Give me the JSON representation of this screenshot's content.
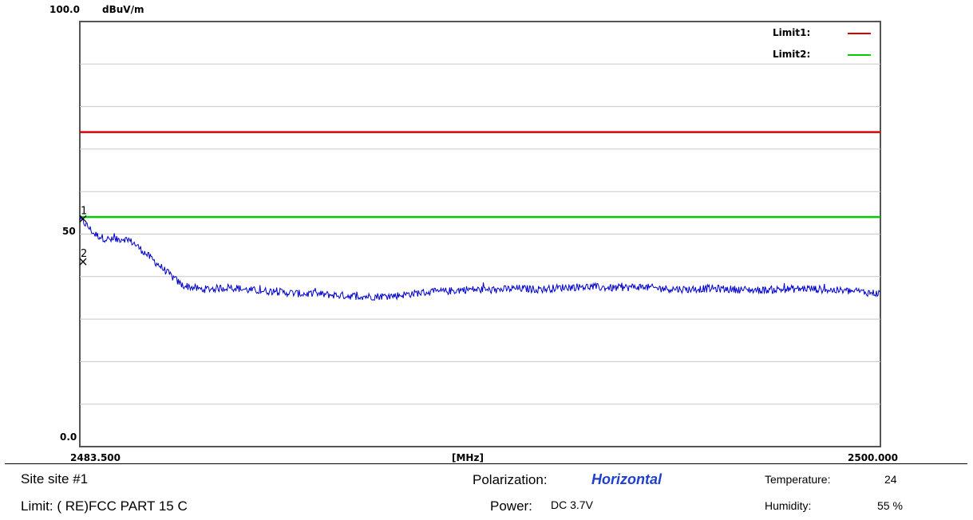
{
  "chart_data": {
    "type": "line",
    "ylabel_unit": "dBuV/m",
    "xlabel": "[MHz]",
    "xlim": [
      2483.5,
      2500.0
    ],
    "ylim": [
      0.0,
      100.0
    ],
    "y_tick_labels": [
      "100.0",
      "50",
      "0.0"
    ],
    "x_tick_labels": [
      "2483.500",
      "2500.000"
    ],
    "grid": true,
    "legend": {
      "placement": "top-right",
      "entries": [
        {
          "label": "Limit1:",
          "color": "#dd0000"
        },
        {
          "label": "Limit2:",
          "color": "#00cc00"
        }
      ]
    },
    "limits": [
      {
        "name": "Limit1",
        "y": 74.0,
        "color": "#dd0000"
      },
      {
        "name": "Limit2",
        "y": 54.0,
        "color": "#00cc00"
      }
    ],
    "series": [
      {
        "color": "#0000cc",
        "x": [
          2483.5,
          2483.65,
          2483.8,
          2484.0,
          2484.2,
          2484.4,
          2484.6,
          2484.8,
          2485.0,
          2485.2,
          2485.4,
          2485.6,
          2485.8,
          2486.0,
          2486.3,
          2486.6,
          2487.0,
          2487.5,
          2488.0,
          2488.5,
          2489.0,
          2489.5,
          2490.0,
          2490.5,
          2491.0,
          2491.5,
          2492.0,
          2492.5,
          2493.0,
          2493.5,
          2494.0,
          2494.5,
          2495.0,
          2495.5,
          2496.0,
          2496.5,
          2497.0,
          2497.5,
          2498.0,
          2498.5,
          2499.0,
          2499.5,
          2500.0
        ],
        "y": [
          53.6,
          52.0,
          50.0,
          49.0,
          48.5,
          49.0,
          48.0,
          46.0,
          44.0,
          42.0,
          40.0,
          38.0,
          37.5,
          37.0,
          37.2,
          37.5,
          36.8,
          36.5,
          36.0,
          35.8,
          35.5,
          35.3,
          35.5,
          36.2,
          36.5,
          37.0,
          36.8,
          37.2,
          37.0,
          37.5,
          37.6,
          37.3,
          37.6,
          37.2,
          37.0,
          37.2,
          37.0,
          36.8,
          37.0,
          37.2,
          36.8,
          36.5,
          36.0
        ],
        "noise": 0.9
      }
    ],
    "markers": [
      {
        "label": "1",
        "x": 2483.5,
        "y": 53.6
      },
      {
        "label": "2",
        "x": 2483.5,
        "y": 43.5
      }
    ]
  },
  "info": {
    "site": "Site site #1",
    "limit": "Limit: ( RE)FCC PART 15 C",
    "polarization_label": "Polarization:",
    "polarization_value": "Horizontal",
    "power_label": "Power:",
    "power_value": "DC 3.7V",
    "temperature_label": "Temperature:",
    "temperature_value": "24",
    "humidity_label": "Humidity:",
    "humidity_value": "55 %"
  }
}
